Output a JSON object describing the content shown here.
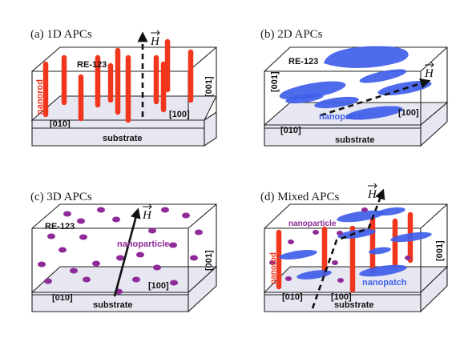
{
  "panels": {
    "a": {
      "title": "(a) 1D APCs",
      "layer": "RE-123",
      "feature": "nanorod",
      "field": "H",
      "axis_vertical": "[001]",
      "axis_front": "[010]",
      "axis_side": "[100]",
      "base": "substrate"
    },
    "b": {
      "title": "(b) 2D APCs",
      "layer": "RE-123",
      "feature": "nanopatch",
      "field": "H",
      "axis_vertical": "[001]",
      "axis_front": "[010]",
      "axis_side": "[100]",
      "base": "substrate"
    },
    "c": {
      "title": "(c) 3D APCs",
      "layer": "RE-123",
      "feature": "nanoparticle",
      "field": "H",
      "axis_vertical": "[001]",
      "axis_front": "[010]",
      "axis_side": "[100]",
      "base": "substrate"
    },
    "d": {
      "title": "(d) Mixed APCs",
      "feature_particle": "nanoparticle",
      "feature_rod": "nanorod",
      "feature_patch": "nanopatch",
      "field": "H",
      "axis_vertical": "[001]",
      "axis_front": "[010]",
      "axis_side": "[100]",
      "base": "substrate"
    }
  },
  "colors": {
    "nanorod": "#f0361c",
    "nanopatch": "#3f5eea",
    "nanoparticle": "#8f2a99",
    "substrate": "#e7e7f1"
  }
}
